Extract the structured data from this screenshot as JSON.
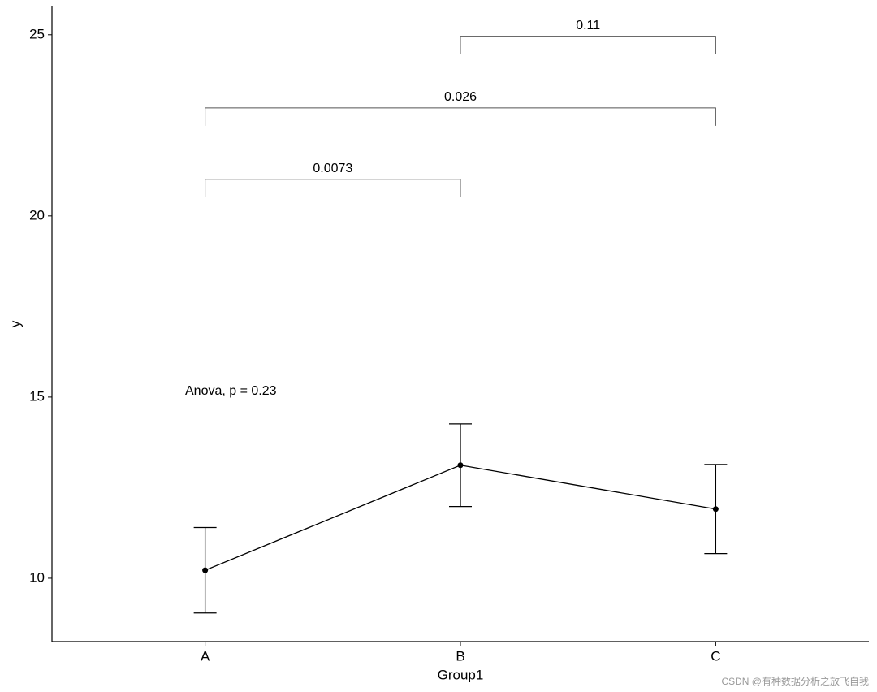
{
  "chart_data": {
    "type": "line",
    "xlabel": "Group1",
    "ylabel": "y",
    "categories": [
      "A",
      "B",
      "C"
    ],
    "series": [
      {
        "color": "#000000",
        "values": [
          10.22,
          13.12,
          11.91
        ],
        "errors": [
          1.18,
          1.14,
          1.23
        ]
      }
    ],
    "ylim": [
      8.25,
      25.78
    ],
    "yticks": [
      10,
      15,
      20,
      25
    ],
    "annotation": "Anova, p = 0.23",
    "brackets": [
      {
        "label": "0.0073",
        "groups": [
          "A",
          "B"
        ],
        "y": 21.01
      },
      {
        "label": "0.026",
        "groups": [
          "A",
          "C"
        ],
        "y": 22.98
      },
      {
        "label": "0.11",
        "groups": [
          "B",
          "C"
        ],
        "y": 24.96
      }
    ],
    "watermark": "CSDN @有种数据分析之放飞自我"
  }
}
